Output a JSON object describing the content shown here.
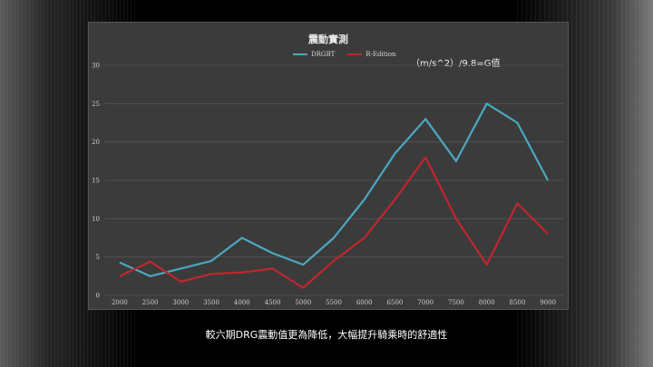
{
  "caption": "較六期DRG震動值更為降低，大幅提升騎乘時的舒適性",
  "chart_data": {
    "type": "line",
    "title": "震動實測",
    "annotation": "（m/s^2）/9.8=G值",
    "x": [
      2000,
      2500,
      3000,
      3500,
      4000,
      4500,
      5000,
      5500,
      6000,
      6500,
      7000,
      7500,
      8000,
      8500,
      9000
    ],
    "ylim": [
      0,
      30
    ],
    "yticks": [
      0,
      5,
      10,
      15,
      20,
      25,
      30
    ],
    "grid": true,
    "legend_position": "top",
    "series": [
      {
        "name": "DRGBT",
        "color": "#4aa8c0",
        "values": [
          4.3,
          2.5,
          3.5,
          4.5,
          7.5,
          5.5,
          4.0,
          7.5,
          12.5,
          18.5,
          23.0,
          17.5,
          25.0,
          22.5,
          15.0
        ]
      },
      {
        "name": "R-Edition",
        "color": "#c0272d",
        "values": [
          2.5,
          4.4,
          1.8,
          2.8,
          3.0,
          3.5,
          1.0,
          4.5,
          7.5,
          12.5,
          18.0,
          10.0,
          4.0,
          12.0,
          8.0
        ]
      }
    ]
  }
}
